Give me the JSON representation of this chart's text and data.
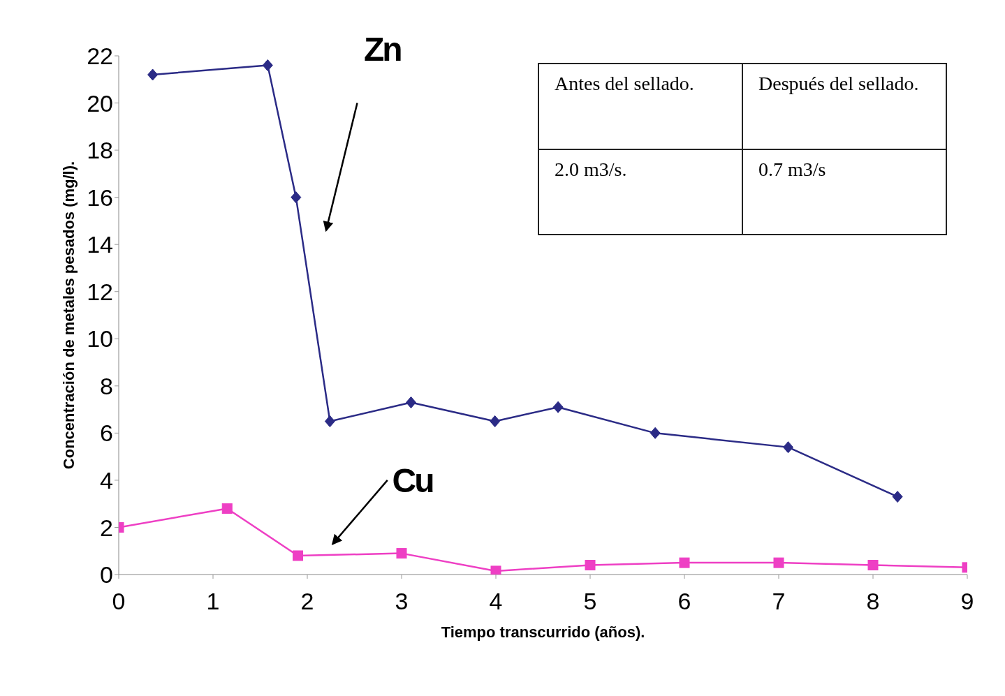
{
  "chart_data": {
    "type": "line",
    "xlabel": "Tiempo transcurrido (años).",
    "ylabel": "Concentración de metales pesados (mg/l).",
    "xlim": [
      0,
      9
    ],
    "xticks": [
      0,
      1,
      2,
      3,
      4,
      5,
      6,
      7,
      8,
      9
    ],
    "ylim": [
      0,
      22
    ],
    "yticks": [
      0,
      2,
      4,
      6,
      8,
      10,
      12,
      14,
      16,
      18,
      20,
      22
    ],
    "series": [
      {
        "name": "Zn",
        "color": "#2b2b86",
        "marker": "diamond",
        "x": [
          0.36,
          1.58,
          1.88,
          2.24,
          3.1,
          3.99,
          4.66,
          5.69,
          7.1,
          8.26
        ],
        "values": [
          21.2,
          21.6,
          16.0,
          6.5,
          7.3,
          6.5,
          7.1,
          6.0,
          5.4,
          3.3
        ]
      },
      {
        "name": "Cu",
        "color": "#ee3fc4",
        "marker": "square",
        "x": [
          0,
          1.15,
          1.9,
          3.0,
          4.0,
          5.0,
          6.0,
          7.0,
          8.0,
          9.0
        ],
        "values": [
          2.0,
          2.8,
          0.8,
          0.9,
          0.15,
          0.4,
          0.5,
          0.5,
          0.4,
          0.3
        ]
      }
    ],
    "annotations": [
      "Antes del sellado.",
      "Después del sellado.",
      "2.0 m3/s.",
      "0.7 m3/s"
    ]
  }
}
